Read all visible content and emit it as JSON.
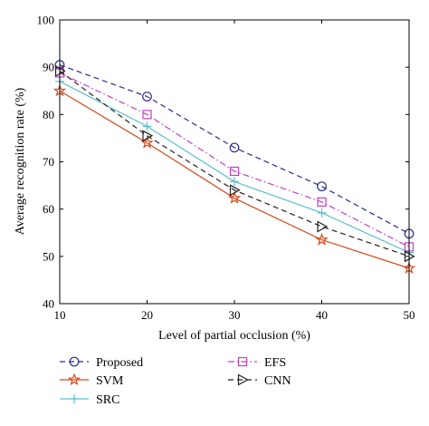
{
  "chart_data": {
    "type": "line",
    "title": "",
    "xlabel": "Level of partial occlusion (%)",
    "ylabel": "Average recognition rate (%)",
    "xlim": [
      10,
      50
    ],
    "ylim": [
      40,
      100
    ],
    "x": [
      10,
      20,
      30,
      40,
      50
    ],
    "xticks": [
      "10",
      "20",
      "30",
      "40",
      "50"
    ],
    "yticks": [
      "40",
      "50",
      "60",
      "70",
      "80",
      "90",
      "100"
    ],
    "grid": false,
    "legend_position": "bottom",
    "series": [
      {
        "name": "Proposed",
        "values": [
          90.5,
          83.8,
          73.0,
          64.8,
          54.8
        ],
        "color": "#2b2b8c",
        "dash": "dashed",
        "marker": "circle"
      },
      {
        "name": "SVM",
        "values": [
          85.0,
          74.0,
          62.3,
          53.5,
          47.5
        ],
        "color": "#d44a1c",
        "dash": "solid",
        "marker": "star"
      },
      {
        "name": "SRC",
        "values": [
          87.0,
          77.5,
          65.8,
          59.2,
          50.8
        ],
        "color": "#5cbfc9",
        "dash": "solid",
        "marker": "plus"
      },
      {
        "name": "EFS",
        "values": [
          88.8,
          80.0,
          68.0,
          61.5,
          52.0
        ],
        "color": "#c040c0",
        "dash": "dashdot",
        "marker": "square"
      },
      {
        "name": "CNN",
        "values": [
          89.2,
          75.5,
          64.0,
          56.3,
          50.0
        ],
        "color": "#222222",
        "dash": "dashed",
        "marker": "triangle-right"
      }
    ]
  }
}
